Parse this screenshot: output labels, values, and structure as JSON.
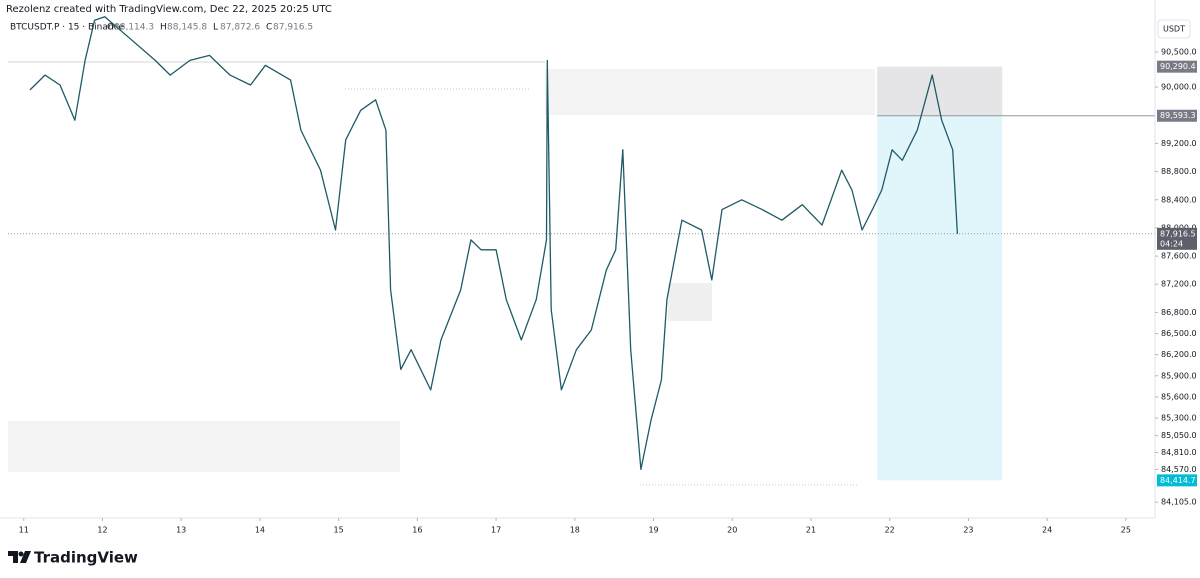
{
  "header": {
    "credit": "Rezolenz created with TradingView.com, Dec 22, 2025 20:25 UTC",
    "symbol": "BTCUSDT.P · 15 · Binance",
    "ohlc": [
      {
        "key": "O",
        "text": "88,114.3"
      },
      {
        "key": "H",
        "text": "88,145.8"
      },
      {
        "key": "L",
        "text": "87,872.6"
      },
      {
        "key": "C",
        "text": "87,916.5"
      }
    ]
  },
  "currency": "USDT",
  "footer": {
    "brand": "TradingView"
  },
  "chart_data": {
    "type": "line",
    "color": "#1e5b66",
    "x": [
      11.08,
      11.27,
      11.46,
      11.65,
      11.78,
      11.9,
      12.03,
      12.67,
      12.86,
      13.11,
      13.36,
      13.62,
      13.88,
      14.07,
      14.39,
      14.52,
      14.77,
      14.96,
      15.09,
      15.28,
      15.47,
      15.6,
      15.66,
      15.79,
      15.92,
      16.17,
      16.3,
      16.55,
      16.68,
      16.81,
      17.0,
      17.13,
      17.32,
      17.51,
      17.64,
      17.65,
      17.7,
      17.83,
      18.02,
      18.21,
      18.4,
      18.52,
      18.61,
      18.71,
      18.84,
      18.97,
      19.1,
      19.17,
      19.36,
      19.61,
      19.74,
      19.87,
      20.12,
      20.38,
      20.63,
      20.89,
      21.14,
      21.39,
      21.52,
      21.65,
      21.78,
      21.9,
      22.03,
      22.16,
      22.35,
      22.54,
      22.66,
      22.8,
      22.86
    ],
    "values": [
      89960,
      90170,
      90030,
      89530,
      90380,
      90950,
      91000,
      90380,
      90170,
      90380,
      90450,
      90170,
      90030,
      90310,
      90100,
      89390,
      88820,
      87970,
      89250,
      89670,
      89820,
      89390,
      87120,
      85990,
      86270,
      85700,
      86410,
      87120,
      87830,
      87690,
      87690,
      86980,
      86410,
      86980,
      87830,
      90380,
      86840,
      85700,
      86270,
      86550,
      87400,
      87690,
      89110,
      86270,
      84570,
      85280,
      85840,
      86980,
      88110,
      87970,
      87260,
      88260,
      88400,
      88260,
      88110,
      88330,
      88040,
      88820,
      88540,
      87970,
      88260,
      88540,
      89110,
      88960,
      89390,
      90170,
      89530,
      89110,
      87916.5
    ],
    "xlim": [
      10.8,
      25.37
    ],
    "ylim": [
      83880,
      91010
    ],
    "xticks": [
      11,
      12,
      13,
      14,
      15,
      16,
      17,
      18,
      19,
      20,
      21,
      22,
      23,
      24,
      25
    ],
    "yticks": [
      {
        "value": 90500,
        "label": "90,500.0"
      },
      {
        "value": 90000,
        "label": "90,000.0"
      },
      {
        "value": 89200,
        "label": "89,200.0"
      },
      {
        "value": 88800,
        "label": "88,800.0"
      },
      {
        "value": 88400,
        "label": "88,400.0"
      },
      {
        "value": 88000,
        "label": "88,000.0"
      },
      {
        "value": 87600,
        "label": "87,600.0"
      },
      {
        "value": 87200,
        "label": "87,200.0"
      },
      {
        "value": 86800,
        "label": "86,800.0"
      },
      {
        "value": 86500,
        "label": "86,500.0"
      },
      {
        "value": 86200,
        "label": "86,200.0"
      },
      {
        "value": 85900,
        "label": "85,900.0"
      },
      {
        "value": 85600,
        "label": "85,600.0"
      },
      {
        "value": 85300,
        "label": "85,300.0"
      },
      {
        "value": 85050,
        "label": "85,050.0"
      },
      {
        "value": 84810,
        "label": "84,810.0"
      },
      {
        "value": 84570,
        "label": "84,570.0"
      },
      {
        "value": 84105,
        "label": "84,105.0"
      }
    ],
    "price_labels": [
      {
        "value": 90290.4,
        "label": "90,290.4"
      },
      {
        "value": 89593.3,
        "label": "89,593.3"
      },
      {
        "value": 84414.7,
        "label": "84,414.7"
      }
    ],
    "position_x": [
      21.84,
      23.43
    ],
    "last": {
      "value": 87916.5,
      "label": "87,916.5",
      "countdown": "04:24"
    }
  }
}
